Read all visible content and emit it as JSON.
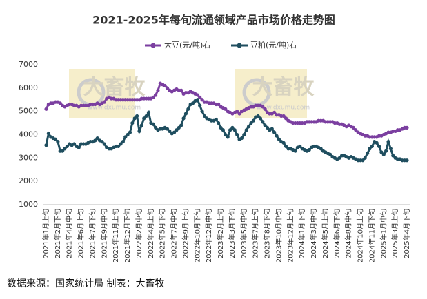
{
  "chart_data": {
    "type": "line",
    "title": "2021-2025年每旬流通领域产品市场价格走势图",
    "note": "数据来源：国家统计局  制表：大畜牧",
    "watermark": "大畜牧",
    "watermark_url": "www.dxumu.com",
    "ylim": [
      1000,
      7000
    ],
    "yticks": [
      1000,
      2000,
      3000,
      4000,
      5000,
      6000,
      7000
    ],
    "grid": false,
    "legend": "top",
    "categories": [
      "2021年1月上旬",
      null,
      null,
      null,
      null,
      "2021年2月下旬",
      null,
      null,
      null,
      null,
      "2021年4月中旬",
      null,
      null,
      null,
      null,
      "2021年6月上旬",
      null,
      null,
      null,
      null,
      "2021年7月下旬",
      null,
      null,
      null,
      null,
      "2021年9月中旬",
      null,
      null,
      null,
      null,
      "2021年11月上旬",
      null,
      null,
      null,
      null,
      "2021年12月下旬",
      null,
      null,
      null,
      null,
      "2022年2月中旬",
      null,
      null,
      null,
      null,
      "2022年4月上旬",
      null,
      null,
      null,
      null,
      "2022年5月下旬",
      null,
      null,
      null,
      null,
      "2022年7月中旬",
      null,
      null,
      null,
      null,
      "2022年9月上旬",
      null,
      null,
      null,
      null,
      "2022年10月下旬",
      null,
      null,
      null,
      null,
      "2022年12月中旬",
      null,
      null,
      null,
      null,
      "2023年2月上旬",
      null,
      null,
      null,
      null,
      "2023年3月下旬",
      null,
      null,
      null,
      null,
      "2023年5月中旬",
      null,
      null,
      null,
      null,
      "2023年7月上旬",
      null,
      null,
      null,
      null,
      "2023年8月下旬",
      null,
      null,
      null,
      null,
      "2023年10月中旬",
      null,
      null,
      null,
      null,
      "2023年12月上旬",
      null,
      null,
      null,
      null,
      "2024年1月下旬",
      null,
      null,
      null,
      null,
      "2024年3月中旬",
      null,
      null,
      null,
      null,
      "2024年5月上旬",
      null,
      null,
      null,
      null,
      "2024年6月下旬",
      null,
      null,
      null,
      null,
      "2024年8月中旬",
      null,
      null,
      null,
      null,
      "2024年10月上旬",
      null,
      null,
      null,
      null,
      "2024年11月下旬",
      null,
      null,
      null,
      null,
      "2025年1月中旬",
      null,
      null,
      null,
      null,
      "2025年3月上旬",
      null,
      null,
      null,
      null,
      "2025年4月下旬"
    ],
    "series": [
      {
        "name": "大豆(元/吨)右",
        "color": "#7b3fa0",
        "values": [
          5100,
          5300,
          5350,
          5350,
          5400,
          5400,
          5350,
          5250,
          5200,
          5250,
          5300,
          5300,
          5250,
          5250,
          5200,
          5250,
          5250,
          5250,
          5250,
          5300,
          5300,
          5300,
          5350,
          5300,
          5350,
          5400,
          5550,
          5600,
          5550,
          5550,
          5500,
          5500,
          5500,
          5500,
          5500,
          5500,
          5500,
          5500,
          5500,
          5500,
          5500,
          5550,
          5550,
          5550,
          5550,
          5550,
          5600,
          5700,
          5900,
          6200,
          6150,
          6100,
          6000,
          5900,
          5850,
          5900,
          5950,
          5900,
          5900,
          5750,
          5800,
          5800,
          5850,
          5800,
          5750,
          5700,
          5600,
          5500,
          5400,
          5400,
          5350,
          5350,
          5350,
          5300,
          5300,
          5200,
          5150,
          5100,
          5000,
          4950,
          4900,
          4950,
          5000,
          4900,
          5000,
          5050,
          5100,
          5150,
          5200,
          5200,
          5250,
          5250,
          5250,
          5200,
          5100,
          4950,
          4900,
          4900,
          4950,
          4850,
          4850,
          4800,
          4800,
          4700,
          4600,
          4550,
          4500,
          4500,
          4500,
          4500,
          4500,
          4500,
          4550,
          4550,
          4550,
          4550,
          4550,
          4600,
          4600,
          4600,
          4550,
          4550,
          4550,
          4550,
          4500,
          4500,
          4450,
          4450,
          4400,
          4350,
          4400,
          4350,
          4300,
          4200,
          4100,
          4050,
          4000,
          3950,
          3950,
          3900,
          3900,
          3900,
          3900,
          3950,
          3950,
          4000,
          4050,
          4100,
          4100,
          4150,
          4150,
          4200,
          4200,
          4250,
          4300,
          4300
        ]
      },
      {
        "name": "豆粕(元/吨)右",
        "color": "#1f4e5f",
        "values": [
          3550,
          4050,
          3900,
          3850,
          3800,
          3700,
          3300,
          3300,
          3400,
          3500,
          3600,
          3550,
          3600,
          3500,
          3450,
          3600,
          3600,
          3600,
          3650,
          3700,
          3700,
          3750,
          3850,
          3750,
          3700,
          3600,
          3450,
          3400,
          3400,
          3450,
          3500,
          3500,
          3600,
          3700,
          3900,
          4000,
          4100,
          4500,
          4700,
          4800,
          4150,
          4400,
          4700,
          4800,
          4950,
          4500,
          4450,
          4300,
          4200,
          4250,
          4250,
          4300,
          4250,
          4150,
          4050,
          4100,
          4200,
          4300,
          4400,
          4700,
          4900,
          5100,
          5300,
          5350,
          5450,
          5500,
          5250,
          5000,
          4800,
          4700,
          4650,
          4600,
          4600,
          4650,
          4500,
          4300,
          4200,
          4000,
          3900,
          4200,
          4300,
          4200,
          4000,
          3800,
          3850,
          4000,
          4200,
          4350,
          4500,
          4600,
          4750,
          4800,
          4700,
          4550,
          4400,
          4300,
          4200,
          4250,
          4100,
          3950,
          3800,
          3700,
          3650,
          3500,
          3400,
          3400,
          3350,
          3300,
          3450,
          3500,
          3400,
          3350,
          3300,
          3350,
          3450,
          3500,
          3500,
          3450,
          3400,
          3300,
          3250,
          3200,
          3150,
          3050,
          3000,
          2950,
          3000,
          3100,
          3100,
          3050,
          3000,
          3050,
          3000,
          2950,
          2900,
          2900,
          2900,
          3000,
          3200,
          3400,
          3500,
          3700,
          3650,
          3500,
          3250,
          3150,
          3300,
          3700,
          3400,
          3100,
          3000,
          2950,
          2950,
          2900,
          2900,
          2900
        ]
      }
    ]
  }
}
